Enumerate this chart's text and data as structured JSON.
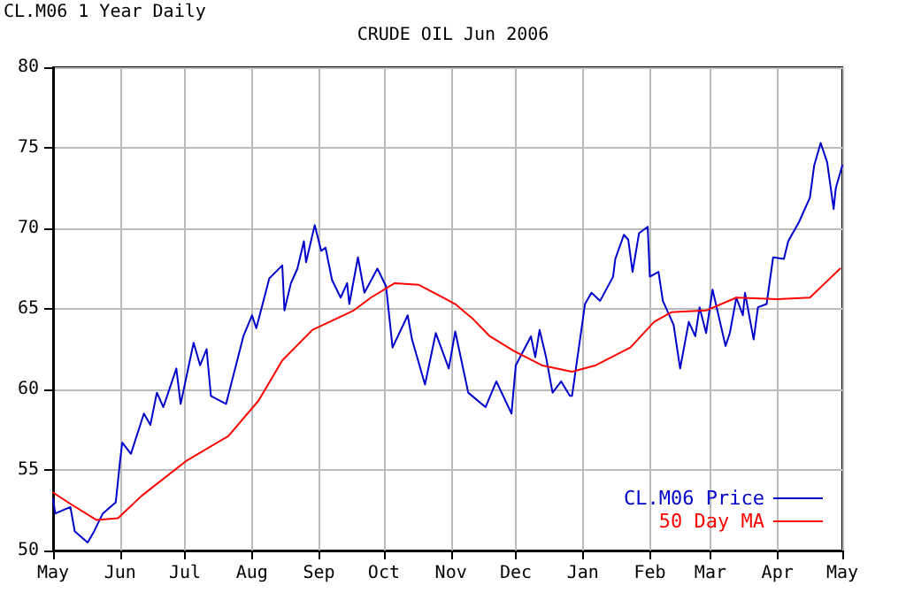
{
  "chart_data": {
    "type": "line",
    "title": "CRUDE OIL Jun 2006",
    "annotations": [
      "CL.M06 1 Year Daily"
    ],
    "xlim": [
      "2005-05-01",
      "2006-05-01"
    ],
    "xticks": [
      {
        "value": "2005-05-01",
        "label": "May"
      },
      {
        "value": "2005-06-01",
        "label": "Jun"
      },
      {
        "value": "2005-07-01",
        "label": "Jul"
      },
      {
        "value": "2005-08-01",
        "label": "Aug"
      },
      {
        "value": "2005-09-01",
        "label": "Sep"
      },
      {
        "value": "2005-10-01",
        "label": "Oct"
      },
      {
        "value": "2005-11-01",
        "label": "Nov"
      },
      {
        "value": "2005-12-01",
        "label": "Dec"
      },
      {
        "value": "2006-01-01",
        "label": "Jan"
      },
      {
        "value": "2006-02-01",
        "label": "Feb"
      },
      {
        "value": "2006-03-01",
        "label": "Mar"
      },
      {
        "value": "2006-04-01",
        "label": "Apr"
      },
      {
        "value": "2006-05-01",
        "label": "May"
      }
    ],
    "ylim": [
      50,
      80
    ],
    "yticks": [
      50,
      55,
      60,
      65,
      70,
      75,
      80
    ],
    "grid": true,
    "legend": "bottom right",
    "marker": "none",
    "line_style": "solid",
    "series": [
      {
        "name": "CL.M06 Price",
        "color": "#0000cc",
        "x": [
          "2005-05-01",
          "2005-05-02",
          "2005-05-09",
          "2005-05-11",
          "2005-05-17",
          "2005-05-20",
          "2005-05-24",
          "2005-05-30",
          "2005-06-01",
          "2005-06-02",
          "2005-06-06",
          "2005-06-12",
          "2005-06-15",
          "2005-06-18",
          "2005-06-21",
          "2005-06-27",
          "2005-06-29",
          "2005-07-05",
          "2005-07-08",
          "2005-07-11",
          "2005-07-13",
          "2005-07-20",
          "2005-07-28",
          "2005-08-01",
          "2005-08-03",
          "2005-08-09",
          "2005-08-15",
          "2005-08-16",
          "2005-08-19",
          "2005-08-22",
          "2005-08-25",
          "2005-08-26",
          "2005-08-30",
          "2005-09-02",
          "2005-09-04",
          "2005-09-07",
          "2005-09-11",
          "2005-09-14",
          "2005-09-15",
          "2005-09-19",
          "2005-09-22",
          "2005-09-28",
          "2005-10-02",
          "2005-10-05",
          "2005-10-12",
          "2005-10-14",
          "2005-10-20",
          "2005-10-25",
          "2005-10-31",
          "2005-11-03",
          "2005-11-09",
          "2005-11-17",
          "2005-11-22",
          "2005-11-29",
          "2005-12-01",
          "2005-12-08",
          "2005-12-10",
          "2005-12-12",
          "2005-12-15",
          "2005-12-18",
          "2005-12-22",
          "2005-12-26",
          "2005-12-27",
          "2006-01-02",
          "2006-01-05",
          "2006-01-09",
          "2006-01-15",
          "2006-01-16",
          "2006-01-20",
          "2006-01-22",
          "2006-01-24",
          "2006-01-27",
          "2006-01-31",
          "2006-02-01",
          "2006-02-05",
          "2006-02-07",
          "2006-02-12",
          "2006-02-15",
          "2006-02-19",
          "2006-02-22",
          "2006-02-24",
          "2006-02-27",
          "2006-03-02",
          "2006-03-08",
          "2006-03-10",
          "2006-03-13",
          "2006-03-16",
          "2006-03-17",
          "2006-03-21",
          "2006-03-23",
          "2006-03-27",
          "2006-03-30",
          "2006-04-04",
          "2006-04-06",
          "2006-04-11",
          "2006-04-16",
          "2006-04-18",
          "2006-04-21",
          "2006-04-24",
          "2006-04-27",
          "2006-04-28",
          "2006-05-01"
        ],
        "values": [
          53.2,
          52.3,
          52.7,
          51.2,
          50.5,
          51.2,
          52.3,
          53.0,
          55.6,
          56.7,
          56.0,
          58.5,
          57.8,
          59.8,
          58.9,
          61.3,
          59.1,
          62.9,
          61.5,
          62.5,
          59.6,
          59.1,
          63.3,
          64.6,
          63.8,
          66.9,
          67.7,
          64.9,
          66.6,
          67.5,
          69.2,
          67.9,
          70.2,
          68.6,
          68.8,
          66.8,
          65.7,
          66.6,
          65.3,
          68.2,
          66.0,
          67.5,
          66.4,
          62.6,
          64.6,
          63.1,
          60.3,
          63.5,
          61.3,
          63.6,
          59.8,
          58.9,
          60.5,
          58.5,
          61.5,
          63.3,
          62.0,
          63.7,
          62.0,
          59.8,
          60.5,
          59.6,
          59.6,
          65.3,
          66.0,
          65.5,
          67.0,
          68.1,
          69.6,
          69.3,
          67.3,
          69.7,
          70.1,
          67.0,
          67.3,
          65.5,
          64.0,
          61.3,
          64.2,
          63.3,
          65.1,
          63.5,
          66.2,
          62.7,
          63.5,
          65.7,
          64.6,
          66.0,
          63.1,
          65.1,
          65.3,
          68.2,
          68.1,
          69.2,
          70.4,
          71.9,
          73.9,
          75.3,
          74.1,
          71.2,
          72.5,
          73.9
        ]
      },
      {
        "name": "50 Day MA",
        "color": "#ff0000",
        "x": [
          "2005-05-01",
          "2005-05-09",
          "2005-05-21",
          "2005-05-31",
          "2005-06-11",
          "2005-07-02",
          "2005-07-21",
          "2005-08-04",
          "2005-08-15",
          "2005-08-29",
          "2005-09-17",
          "2005-09-25",
          "2005-10-06",
          "2005-10-17",
          "2005-11-03",
          "2005-11-11",
          "2005-11-19",
          "2005-11-30",
          "2005-12-13",
          "2005-12-27",
          "2006-01-07",
          "2006-01-23",
          "2006-02-03",
          "2006-02-11",
          "2006-02-27",
          "2006-03-13",
          "2006-04-01",
          "2006-04-16",
          "2006-04-23",
          "2006-04-30"
        ],
        "values": [
          53.6,
          52.9,
          51.9,
          52.0,
          53.4,
          55.6,
          57.1,
          59.3,
          61.8,
          63.7,
          64.9,
          65.7,
          66.6,
          66.5,
          65.3,
          64.4,
          63.3,
          62.4,
          61.5,
          61.1,
          61.5,
          62.6,
          64.2,
          64.8,
          64.9,
          65.7,
          65.6,
          65.7,
          66.6,
          67.5
        ]
      }
    ]
  }
}
